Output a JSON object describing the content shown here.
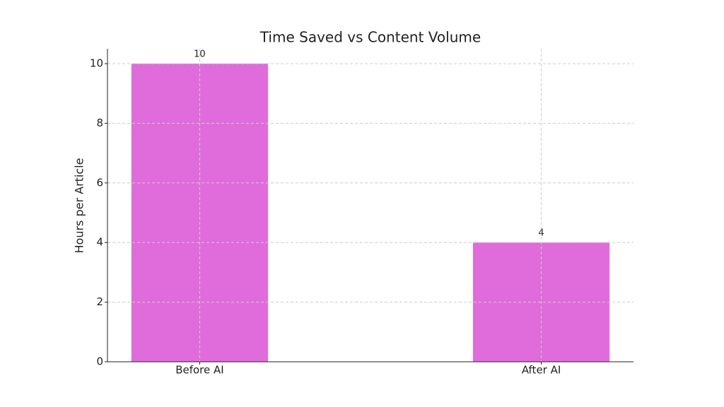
{
  "chart_data": {
    "type": "bar",
    "title": "Time Saved vs Content Volume",
    "y_label": "Hours per Article",
    "categories": [
      "Before AI",
      "After AI"
    ],
    "values": [
      10,
      4
    ],
    "color": "#e06cdc",
    "ylim": [
      0,
      10.5
    ],
    "yticks": [
      0,
      2,
      4,
      6,
      8,
      10
    ],
    "grid": true
  }
}
